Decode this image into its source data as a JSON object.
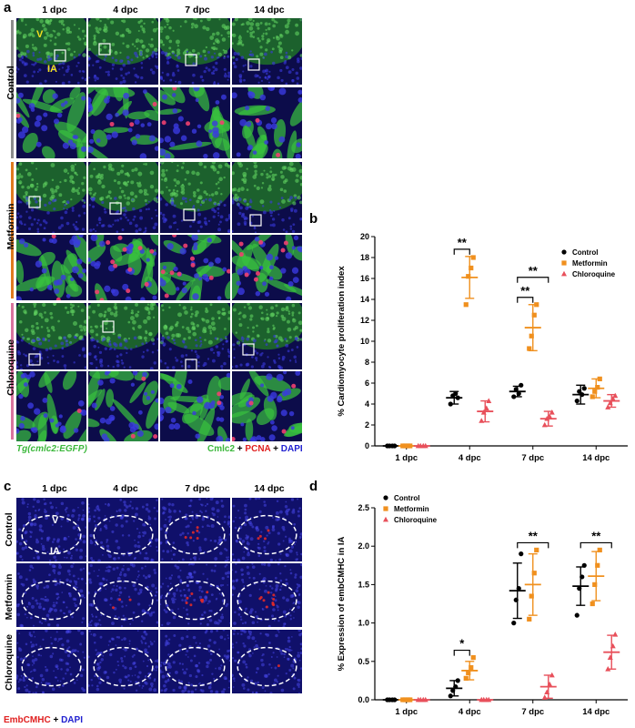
{
  "panels": {
    "a": {
      "letter": "a",
      "columns": [
        "1 dpc",
        "4 dpc",
        "7 dpc",
        "14 dpc"
      ],
      "rows": [
        "Control",
        "Metformin",
        "Chloroquine"
      ],
      "overlay_V": "V",
      "overlay_IA": "IA",
      "caption_left_italic": "Tg(cmlc2:EGFP)",
      "caption_right_parts": [
        "Cmlc2",
        " + ",
        "PCNA",
        " + ",
        "DAPI"
      ],
      "colors": {
        "control": "#8c8c8c",
        "metformin": "#e07a1f",
        "chloroquine": "#d9739e"
      }
    },
    "b": {
      "letter": "b",
      "ylabel": "% Cardiomyocyte proliferation index",
      "legend": [
        "Control",
        "Metformin",
        "Chloroquine"
      ],
      "sig": [
        "**",
        "**",
        "**"
      ]
    },
    "c": {
      "letter": "c",
      "columns": [
        "1 dpc",
        "4 dpc",
        "7 dpc",
        "14 dpc"
      ],
      "rows": [
        "Control",
        "Metformin",
        "Chloroquine"
      ],
      "overlay_V": "V",
      "overlay_IA": "IA",
      "caption_parts": [
        "EmbCMHC",
        " + ",
        "DAPI"
      ]
    },
    "d": {
      "letter": "d",
      "ylabel": "% Expression of embCMHC in IA",
      "legend": [
        "Control",
        "Metformin",
        "Chloroquine"
      ],
      "sig": [
        "*",
        "**",
        "**"
      ]
    }
  },
  "chart_data": [
    {
      "type": "scatter",
      "panel": "b",
      "categories": [
        "1 dpc",
        "4 dpc",
        "7 dpc",
        "14 dpc"
      ],
      "ylabel": "% Cardiomyocyte proliferation index",
      "ylim": [
        0,
        20
      ],
      "yticks": [
        0,
        2,
        4,
        6,
        8,
        10,
        12,
        14,
        16,
        18,
        20
      ],
      "legend_position": "top-right",
      "series": [
        {
          "name": "Control",
          "color": "#000000",
          "marker": "circle",
          "mean": [
            0,
            4.6,
            5.2,
            4.9
          ],
          "sd": [
            0,
            0.6,
            0.5,
            0.9
          ],
          "points": [
            [
              0,
              0,
              0,
              0
            ],
            [
              4.0,
              4.8,
              5.0,
              4.6
            ],
            [
              4.7,
              5.4,
              5.0,
              5.8
            ],
            [
              4.3,
              5.2,
              4.9,
              5.5
            ]
          ]
        },
        {
          "name": "Metformin",
          "color": "#f0901e",
          "marker": "square",
          "mean": [
            0,
            16.1,
            11.3,
            5.5
          ],
          "sd": [
            0,
            2.0,
            2.2,
            0.9
          ],
          "points": [
            [
              0,
              0,
              0,
              0
            ],
            [
              13.5,
              16.2,
              17.0,
              18.0
            ],
            [
              9.3,
              10.5,
              12.5,
              13.5
            ],
            [
              4.7,
              5.2,
              5.6,
              6.4
            ]
          ]
        },
        {
          "name": "Chloroquine",
          "color": "#e8505b",
          "marker": "triangle",
          "mean": [
            0,
            3.3,
            2.6,
            4.3
          ],
          "sd": [
            0,
            1.0,
            0.7,
            0.6
          ],
          "points": [
            [
              0,
              0,
              0,
              0
            ],
            [
              2.4,
              3.2,
              3.6,
              4.3
            ],
            [
              2.0,
              2.6,
              2.8,
              3.2
            ],
            [
              3.7,
              4.1,
              4.5,
              4.8
            ]
          ]
        }
      ],
      "significance": [
        {
          "label": "**",
          "from": [
            1,
            0
          ],
          "to": [
            1,
            1
          ]
        },
        {
          "label": "**",
          "from": [
            2,
            0
          ],
          "to": [
            2,
            1
          ]
        },
        {
          "label": "**",
          "from": [
            2,
            0
          ],
          "to": [
            2,
            2
          ]
        }
      ]
    },
    {
      "type": "scatter",
      "panel": "d",
      "categories": [
        "1 dpc",
        "4 dpc",
        "7 dpc",
        "14 dpc"
      ],
      "ylabel": "% Expression of embCMHC in IA",
      "ylim": [
        0,
        2.5
      ],
      "yticks": [
        0.0,
        0.5,
        1.0,
        1.5,
        2.0,
        2.5
      ],
      "legend_position": "top-left",
      "series": [
        {
          "name": "Control",
          "color": "#000000",
          "marker": "circle",
          "mean": [
            0,
            0.15,
            1.42,
            1.48
          ],
          "sd": [
            0,
            0.1,
            0.36,
            0.25
          ],
          "points": [
            [
              0,
              0,
              0,
              0
            ],
            [
              0.05,
              0.12,
              0.17,
              0.25
            ],
            [
              1.0,
              1.3,
              1.45,
              1.9
            ],
            [
              1.1,
              1.45,
              1.6,
              1.75
            ]
          ]
        },
        {
          "name": "Metformin",
          "color": "#f0901e",
          "marker": "square",
          "mean": [
            0,
            0.38,
            1.5,
            1.61
          ],
          "sd": [
            0,
            0.12,
            0.4,
            0.32
          ],
          "points": [
            [
              0,
              0,
              0,
              0
            ],
            [
              0.28,
              0.35,
              0.42,
              0.55
            ],
            [
              1.05,
              1.35,
              1.65,
              1.95
            ],
            [
              1.25,
              1.5,
              1.75,
              1.95
            ]
          ]
        },
        {
          "name": "Chloroquine",
          "color": "#e8505b",
          "marker": "triangle",
          "mean": [
            0,
            0,
            0.17,
            0.62
          ],
          "sd": [
            0,
            0,
            0.15,
            0.22
          ],
          "points": [
            [
              0,
              0,
              0,
              0
            ],
            [
              0,
              0,
              0,
              0
            ],
            [
              0.03,
              0.1,
              0.2,
              0.32
            ],
            [
              0.4,
              0.55,
              0.7,
              0.85
            ]
          ]
        }
      ],
      "significance": [
        {
          "label": "*",
          "from": [
            1,
            0
          ],
          "to": [
            1,
            1
          ]
        },
        {
          "label": "**",
          "from": [
            2,
            0
          ],
          "to": [
            2,
            2
          ]
        },
        {
          "label": "**",
          "from": [
            3,
            0
          ],
          "to": [
            3,
            2
          ]
        }
      ]
    }
  ]
}
